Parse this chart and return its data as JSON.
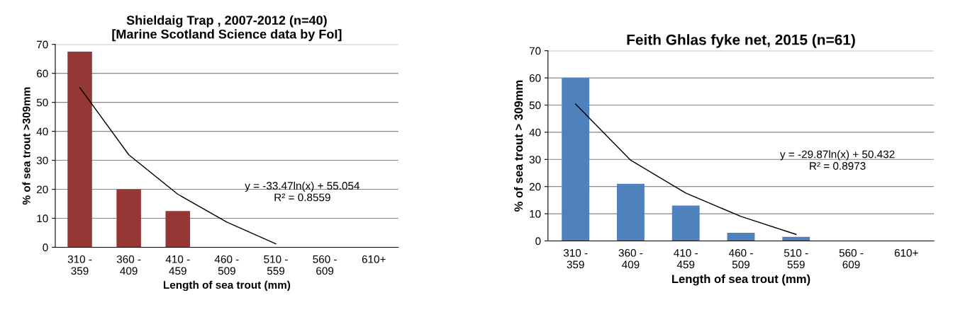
{
  "chart_data": [
    {
      "type": "bar",
      "title": "Shieldaig Trap , 2007-2012 (n=40)\n[Marine Scotland Science data by FoI]",
      "xlabel": "Length of sea trout (mm)",
      "ylabel": "% of sea trout >309mm",
      "categories": [
        "310 -\n359",
        "360 -\n409",
        "410 -\n459",
        "460 -\n509",
        "510 -\n559",
        "560 -\n609",
        "610+"
      ],
      "series": [
        {
          "color": "#953735",
          "values": [
            67.5,
            20,
            12.5,
            0,
            0,
            0,
            0
          ]
        },
        {
          "type": "line",
          "color": "#000000",
          "values": [
            55.1,
            31.9,
            18.3,
            8.7,
            1.2,
            null,
            null
          ]
        }
      ],
      "ylim": [
        0,
        70
      ],
      "yticks": [
        0,
        10,
        20,
        30,
        40,
        50,
        60,
        70
      ],
      "grid": "y",
      "legend": false,
      "annotations": [
        "y = -33.47ln(x) + 55.054\nR² = 0.8559"
      ]
    },
    {
      "type": "bar",
      "title": "Feith Ghlas fyke net, 2015 (n=61)",
      "xlabel": "Length of sea trout (mm)",
      "ylabel": "% of sea trout > 309mm",
      "categories": [
        "310 -\n359",
        "360 -\n409",
        "410 -\n459",
        "460 -\n509",
        "510 -\n559",
        "560 -\n609",
        "610+"
      ],
      "series": [
        {
          "color": "#4f81bd",
          "values": [
            60,
            21,
            13,
            3,
            1.5,
            0,
            0
          ]
        },
        {
          "type": "line",
          "color": "#000000",
          "values": [
            50.4,
            29.7,
            17.6,
            9.0,
            2.4,
            null,
            null
          ]
        }
      ],
      "ylim": [
        0,
        70
      ],
      "yticks": [
        0,
        10,
        20,
        30,
        40,
        50,
        60,
        70
      ],
      "grid": "y",
      "legend": false,
      "annotations": [
        "y = -29.87ln(x) + 50.432\nR² = 0.8973"
      ]
    }
  ]
}
